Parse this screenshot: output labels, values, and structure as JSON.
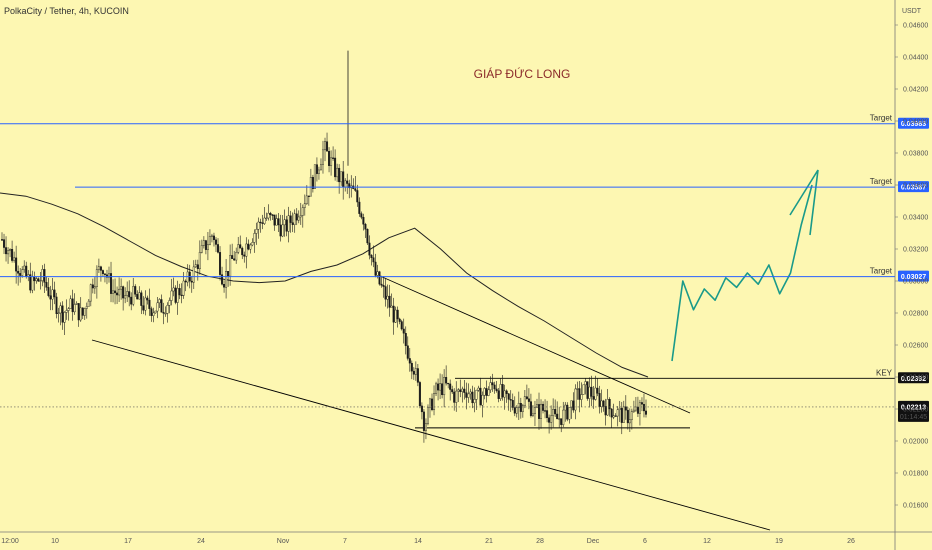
{
  "chart_title": "PolkaCity / Tether, 4h, KUCOIN",
  "currency": "USDT",
  "watermark_text": "GIÁP ĐỨC LONG",
  "colors": {
    "background": "#fdf7b2",
    "target_line": "#2962ff",
    "key_line": "#000000",
    "candle": "#1a1a1a",
    "forecast": "#1a9a8a",
    "watermark": "#8b2a2a",
    "moving_average": "#222222"
  },
  "chart_data": {
    "type": "candlestick",
    "title": "PolkaCity / Tether, 4h, KUCOIN",
    "ylim": [
      0.015,
      0.047
    ],
    "y_ticks": [
      "0.04600",
      "0.04400",
      "0.04200",
      "0.04000",
      "0.03800",
      "0.03600",
      "0.03400",
      "0.03200",
      "0.03000",
      "0.02800",
      "0.02600",
      "0.02400",
      "0.02200",
      "0.02000",
      "0.01800",
      "0.01600"
    ],
    "y_tick_values": [
      0.046,
      0.044,
      0.042,
      0.04,
      0.038,
      0.036,
      0.034,
      0.032,
      0.03,
      0.028,
      0.026,
      0.024,
      0.022,
      0.02,
      0.018,
      0.016
    ],
    "x_ticks": [
      "12:00",
      "10",
      "17",
      "24",
      "Nov",
      "7",
      "14",
      "21",
      "28",
      "Dec",
      "6",
      "12",
      "19",
      "26"
    ],
    "levels": [
      {
        "label": "Target",
        "value_text": "0.03983",
        "value": 0.03983
      },
      {
        "label": "Target",
        "value_text": "0.03587",
        "value": 0.03587
      },
      {
        "label": "Target",
        "value_text": "0.03027",
        "value": 0.03027
      },
      {
        "label": "KEY",
        "value_text": "0.02392",
        "value": 0.02392
      }
    ],
    "current_price_text": "0.02213",
    "current_price": 0.02213,
    "countdown_text": "01:14:45",
    "close_path": [
      0.0326,
      0.0316,
      0.0305,
      0.0298,
      0.0302,
      0.0289,
      0.028,
      0.0285,
      0.0278,
      0.03,
      0.031,
      0.0294,
      0.029,
      0.0291,
      0.0285,
      0.0283,
      0.0284,
      0.029,
      0.0296,
      0.0305,
      0.032,
      0.033,
      0.03,
      0.0315,
      0.032,
      0.033,
      0.034,
      0.0338,
      0.0332,
      0.034,
      0.035,
      0.0365,
      0.0383,
      0.037,
      0.036,
      0.0355,
      0.0338,
      0.0305,
      0.0292,
      0.0278,
      0.0262,
      0.0245,
      0.021,
      0.023,
      0.0235,
      0.0228,
      0.0233,
      0.0226,
      0.023,
      0.0236,
      0.0225,
      0.0222,
      0.0226,
      0.0218,
      0.022,
      0.0213,
      0.0217,
      0.0227,
      0.0232,
      0.0228,
      0.0222,
      0.0218,
      0.0215,
      0.0218,
      0.0221
    ],
    "moving_average_path": [
      0.0355,
      0.0353,
      0.0348,
      0.0342,
      0.0334,
      0.0325,
      0.0316,
      0.0309,
      0.0303,
      0.03,
      0.0299,
      0.03,
      0.0306,
      0.031,
      0.0317,
      0.0327,
      0.0333,
      0.032,
      0.0305,
      0.0294,
      0.0284,
      0.0275,
      0.0265,
      0.0255,
      0.0246,
      0.024
    ],
    "forecast_path": [
      0.025,
      0.03,
      0.0282,
      0.0295,
      0.0288,
      0.0302,
      0.0296,
      0.0305,
      0.0298,
      0.031,
      0.0292,
      0.0305,
      0.0335,
      0.036
    ],
    "trendlines": [
      {
        "name": "lower-channel",
        "from": [
          0.0286,
          0.0
        ],
        "to": [
          0.0163,
          1.0
        ]
      },
      {
        "name": "descending-resistance",
        "from": [
          0.0299,
          0.0
        ],
        "to": [
          0.022,
          1.0
        ]
      },
      {
        "name": "range-support",
        "value": 0.02082
      }
    ]
  }
}
